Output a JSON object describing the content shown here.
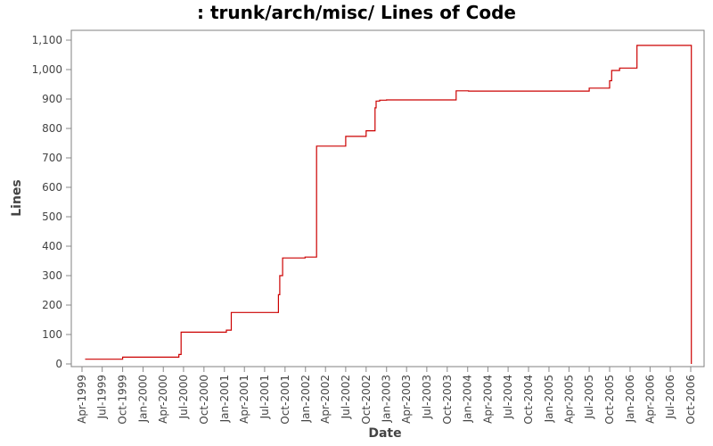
{
  "chart_data": {
    "type": "line",
    "title": ": trunk/arch/misc/ Lines of Code",
    "xlabel": "Date",
    "ylabel": "Lines",
    "ylim": [
      0,
      1100
    ],
    "y_ticks": [
      0,
      100,
      200,
      300,
      400,
      500,
      600,
      700,
      800,
      900,
      1000,
      1100
    ],
    "y_tick_labels": [
      "0",
      "100",
      "200",
      "300",
      "400",
      "500",
      "600",
      "700",
      "800",
      "900",
      "1,000",
      "1,100"
    ],
    "x_tick_labels": [
      "Apr-1999",
      "Jul-1999",
      "Oct-1999",
      "Jan-2000",
      "Apr-2000",
      "Jul-2000",
      "Oct-2000",
      "Jan-2001",
      "Apr-2001",
      "Jul-2001",
      "Oct-2001",
      "Jan-2002",
      "Apr-2002",
      "Jul-2002",
      "Oct-2002",
      "Jan-2003",
      "Apr-2003",
      "Jul-2003",
      "Oct-2003",
      "Jan-2004",
      "Apr-2004",
      "Jul-2004",
      "Oct-2004",
      "Jan-2005",
      "Apr-2005",
      "Jul-2005",
      "Oct-2005",
      "Jan-2006",
      "Apr-2006",
      "Jul-2006",
      "Oct-2006"
    ],
    "grid": false,
    "step": true,
    "color": "#cc0000",
    "series": [
      {
        "x": [
          "1999-04-15",
          "1999-10-01",
          "2000-06-10",
          "2000-06-20",
          "2001-01-10",
          "2001-02-01",
          "2001-09-01",
          "2001-09-07",
          "2001-09-20",
          "2001-12-30",
          "2002-02-20",
          "2002-07-01",
          "2002-10-01",
          "2002-11-10",
          "2002-11-15",
          "2002-12-01",
          "2003-01-01",
          "2003-09-01",
          "2003-11-10",
          "2003-12-01",
          "2004-01-05",
          "2005-07-01",
          "2005-10-01",
          "2005-10-10",
          "2005-10-25",
          "2005-11-15",
          "2005-12-10",
          "2006-02-01",
          "2006-09-15",
          "2006-10-04"
        ],
        "y": [
          16,
          23,
          32,
          108,
          115,
          175,
          235,
          300,
          360,
          363,
          740,
          773,
          792,
          870,
          893,
          896,
          897,
          897,
          928,
          928,
          927,
          937,
          962,
          997,
          997,
          1005,
          1005,
          1082,
          1082,
          0
        ]
      }
    ]
  }
}
